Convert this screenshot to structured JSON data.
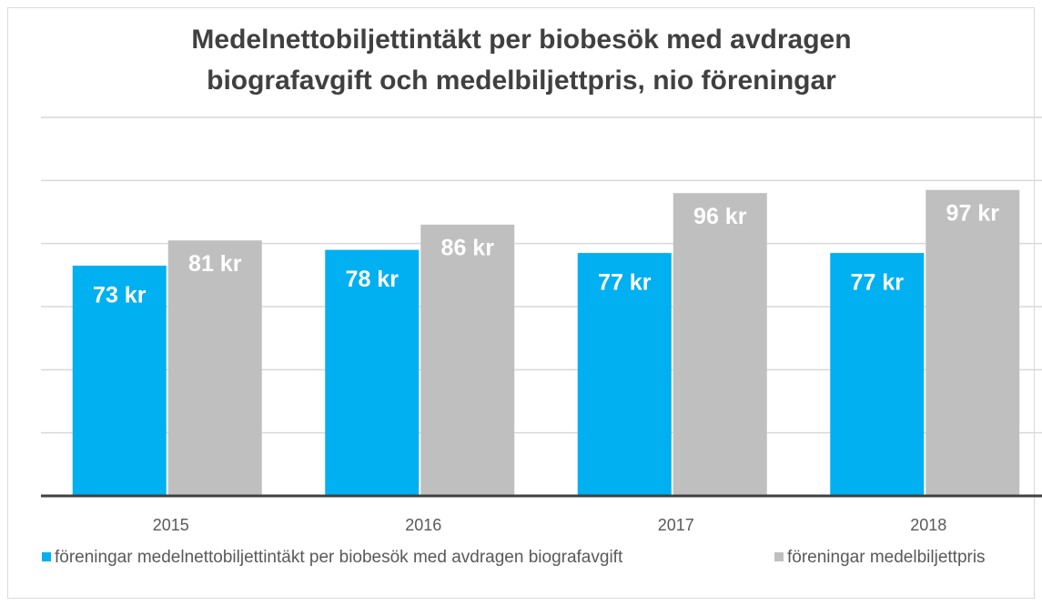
{
  "chart_data": {
    "type": "bar",
    "title": [
      "Medelnettobiljettintäkt per biobesök med avdragen",
      "biografavgift och medelbiljettpris, nio föreningar"
    ],
    "categories": [
      "2015",
      "2016",
      "2017",
      "2018"
    ],
    "series": [
      {
        "name": "föreningar medelnettobiljettintäkt per biobesök med avdragen biografavgift",
        "color": "#00b0f0",
        "values": [
          73,
          78,
          77,
          77
        ],
        "value_labels": [
          "73 kr",
          "78 kr",
          "77 kr",
          "77 kr"
        ]
      },
      {
        "name": "föreningar medelbiljettpris",
        "color": "#bfbfbf",
        "values": [
          81,
          86,
          96,
          97
        ],
        "value_labels": [
          "81 kr",
          "86 kr",
          "96 kr",
          "97 kr"
        ]
      }
    ],
    "ylim": [
      0,
      120
    ],
    "yticks": [
      0,
      20,
      40,
      60,
      80,
      100,
      120
    ],
    "grid": true
  }
}
